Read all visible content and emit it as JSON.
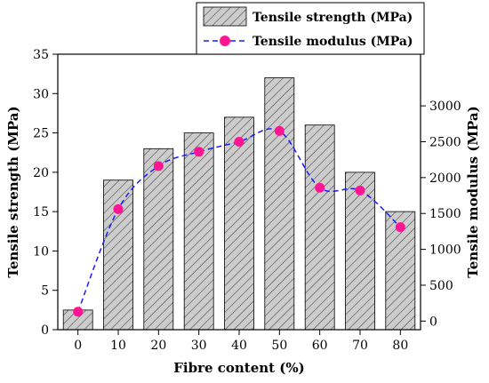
{
  "chart_data": {
    "type": "bar",
    "categories": [
      "0",
      "10",
      "20",
      "30",
      "40",
      "50",
      "60",
      "70",
      "80"
    ],
    "series": [
      {
        "name": "Tensile strength (MPa)",
        "type": "bar",
        "axis": "left",
        "values": [
          2.5,
          19,
          23,
          25,
          27,
          32,
          26,
          20,
          15
        ]
      },
      {
        "name": "Tensile modulus (MPa)",
        "type": "line",
        "axis": "right",
        "values": [
          130,
          1560,
          2160,
          2360,
          2500,
          2650,
          1860,
          1820,
          1310
        ]
      }
    ],
    "xlabel": "Fibre content (%)",
    "ylabel": "Tensile strength (MPa)",
    "y2label": "Tensile modulus (MPa)",
    "ylim": [
      0,
      35
    ],
    "y2lim": [
      -120,
      3720
    ],
    "yticks": [
      0,
      5,
      10,
      15,
      20,
      25,
      30,
      35
    ],
    "y2ticks": [
      0,
      500,
      1000,
      1500,
      2000,
      2500,
      3000
    ],
    "legend_placement": "top-right",
    "colors": {
      "bar_fill": "#cccccc",
      "bar_hatch": "#333333",
      "line": "#1a1aff",
      "marker": "#ff1493"
    }
  }
}
